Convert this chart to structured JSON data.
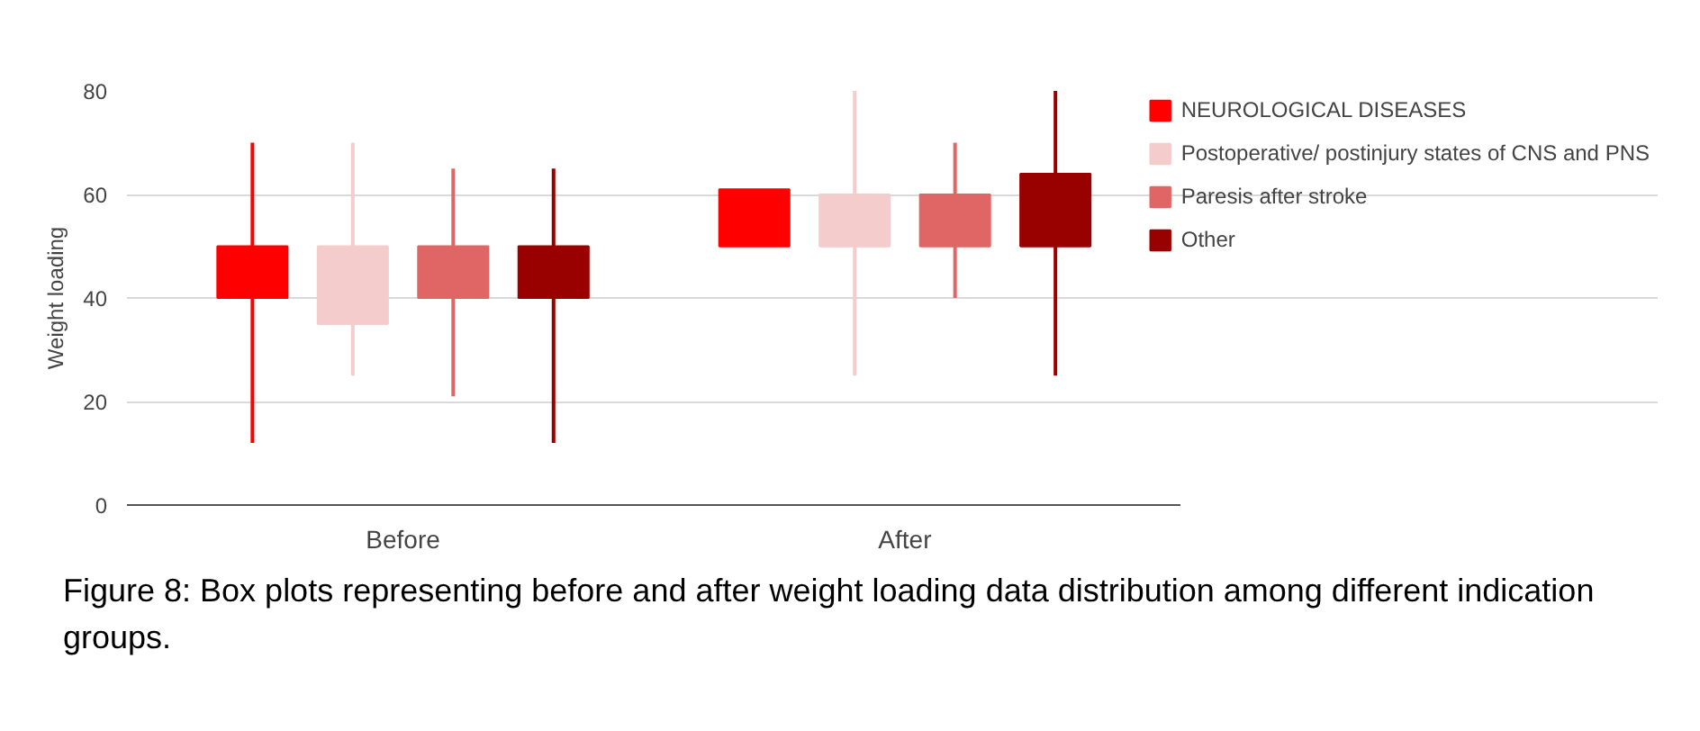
{
  "chart_data": {
    "type": "box",
    "ylabel": "Weight loading",
    "categories": [
      "Before",
      "After"
    ],
    "ylim": [
      0,
      80
    ],
    "yticks": [
      0,
      20,
      40,
      60,
      80
    ],
    "grid": "y",
    "legend": "right",
    "series": [
      {
        "name": "NEUROLOGICAL DISEASES",
        "color": "#ff0000",
        "boxes": [
          {
            "low": 12,
            "q1": 40,
            "median": 40,
            "q3": 50,
            "high": 70
          },
          {
            "low": 50,
            "q1": 50,
            "median": 50,
            "q3": 61,
            "high": 61
          }
        ]
      },
      {
        "name": "Postoperative/ postinjury states of CNS and PNS",
        "color": "#f4cccc",
        "boxes": [
          {
            "low": 25,
            "q1": 35,
            "median": 35,
            "q3": 50,
            "high": 70
          },
          {
            "low": 25,
            "q1": 50,
            "median": 50,
            "q3": 60,
            "high": 80
          }
        ]
      },
      {
        "name": "Paresis after stroke",
        "color": "#e06666",
        "boxes": [
          {
            "low": 21,
            "q1": 40,
            "median": 40,
            "q3": 50,
            "high": 65
          },
          {
            "low": 40,
            "q1": 50,
            "median": 50,
            "q3": 60,
            "high": 70
          }
        ]
      },
      {
        "name": "Other",
        "color": "#990000",
        "boxes": [
          {
            "low": 12,
            "q1": 40,
            "median": 40,
            "q3": 50,
            "high": 65
          },
          {
            "low": 25,
            "q1": 50,
            "median": 50,
            "q3": 64,
            "high": 80
          }
        ]
      }
    ],
    "annotations": [
      "Figure 8: Box plots representing before and after weight loading data distribution among different indication groups."
    ]
  }
}
